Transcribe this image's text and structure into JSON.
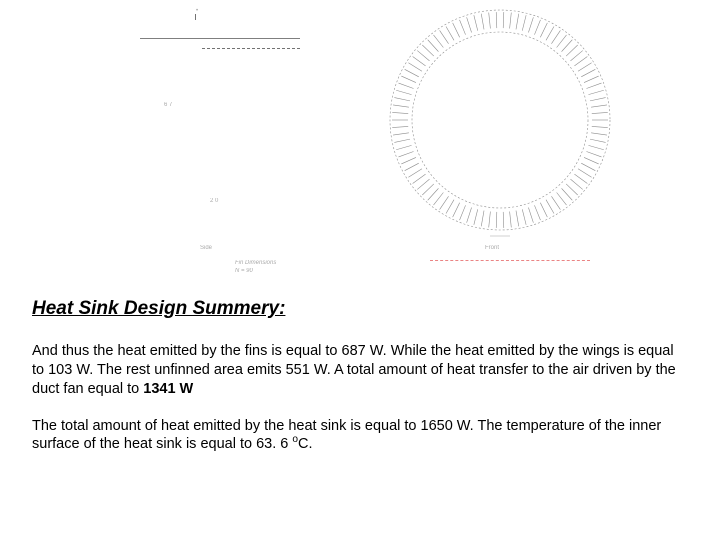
{
  "figure": {
    "side": {
      "caption": "Side",
      "label_67": "6 7",
      "label_top": "•",
      "label_mid": "2 0",
      "ticks_top_label": "•"
    },
    "front": {
      "caption": "Front",
      "outer_radius": 110,
      "inner_radius": 88,
      "fin_count": 90,
      "fin_inner_radius": 92,
      "fin_outer_radius": 108,
      "stroke_color": "#000000",
      "stroke_opacity": 0.45,
      "stroke_width": 0.6
    },
    "dim_caption_line1": "Fin Dimensions",
    "dim_caption_line2": "N = 90",
    "scale_label": ""
  },
  "text": {
    "heading": "Heat Sink Design Summery:",
    "p1_before_bold": "And thus the heat emitted by the fins is equal to 687 W. While the heat emitted by the wings is equal to 103 W. The rest unfinned area emits 551 W. A total amount of heat transfer to the air driven by the duct fan equal to ",
    "p1_bold": "1341 W",
    "p2_before_sup": "The total amount of heat emitted by the heat sink is equal to 1650 W. The temperature of the inner surface of the heat sink is equal to 63. 6 ",
    "p2_sup": "o",
    "p2_after_sup": "C."
  }
}
